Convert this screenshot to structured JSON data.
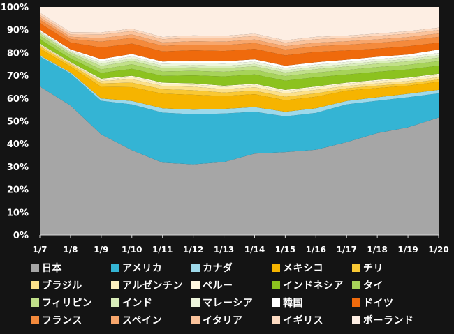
{
  "chart_data": {
    "type": "area",
    "stacked": true,
    "percent": true,
    "title": "",
    "xlabel": "",
    "ylabel": "",
    "categories": [
      "1/7",
      "1/8",
      "1/9",
      "1/10",
      "1/11",
      "1/12",
      "1/13",
      "1/14",
      "1/15",
      "1/16",
      "1/17",
      "1/18",
      "1/19",
      "1/20"
    ],
    "ylim": [
      0,
      100
    ],
    "yticks": [
      "0%",
      "10%",
      "20%",
      "30%",
      "40%",
      "50%",
      "60%",
      "70%",
      "80%",
      "90%",
      "100%"
    ],
    "grid": false,
    "legend_position": "bottom",
    "series": [
      {
        "name": "日本",
        "color": "#a6a6a6",
        "values": [
          64.5,
          56.5,
          43.5,
          37,
          32.5,
          31,
          31.5,
          35,
          36,
          37,
          40.5,
          44,
          46.5,
          51
        ]
      },
      {
        "name": "アメリカ",
        "color": "#34b4d4",
        "values": [
          13,
          14,
          14.5,
          20,
          22.5,
          22,
          21,
          18,
          15.5,
          16,
          16.5,
          14,
          13,
          10.5
        ]
      },
      {
        "name": "カナダ",
        "color": "#9ed9ea",
        "values": [
          0.5,
          0.5,
          1,
          1.5,
          2,
          2,
          2,
          2,
          2,
          2,
          1.5,
          1.5,
          1.5,
          1.5
        ]
      },
      {
        "name": "メキシコ",
        "color": "#f6b400",
        "values": [
          3,
          2.5,
          5,
          6,
          6.5,
          6.5,
          5.5,
          5.5,
          5,
          5,
          4.5,
          4,
          3.5,
          3.5
        ]
      },
      {
        "name": "チリ",
        "color": "#f9c834",
        "values": [
          1,
          1,
          1.5,
          2,
          2,
          2,
          1.5,
          1.5,
          1.5,
          1.5,
          1,
          1,
          1,
          1
        ]
      },
      {
        "name": "ブラジル",
        "color": "#fbe08a",
        "values": [
          0.5,
          0.5,
          1,
          1.5,
          1.5,
          1.5,
          1.5,
          1.5,
          1.5,
          1.5,
          1,
          1,
          1,
          1
        ]
      },
      {
        "name": "アルゼンチン",
        "color": "#fdf0c0",
        "values": [
          0.2,
          0.2,
          0.5,
          1,
          1,
          1,
          1,
          1,
          1,
          1,
          1,
          1,
          1,
          1
        ]
      },
      {
        "name": "ペルー",
        "color": "#fff8e0",
        "values": [
          0.3,
          0.3,
          0.5,
          0.5,
          0.5,
          0.5,
          0.5,
          0.5,
          0.5,
          0.5,
          0.5,
          0.5,
          0.5,
          0.5
        ]
      },
      {
        "name": "インドネシア",
        "color": "#8cc21f",
        "values": [
          2,
          1.5,
          2.5,
          3,
          3,
          3.5,
          4,
          4,
          4,
          4,
          3.5,
          3.5,
          3.5,
          3.5
        ]
      },
      {
        "name": "タイ",
        "color": "#a7d35a",
        "values": [
          1.5,
          1.5,
          1.5,
          2,
          2,
          2,
          2,
          2,
          2,
          2,
          2,
          2,
          2,
          2
        ]
      },
      {
        "name": "フィリピン",
        "color": "#c1e08a",
        "values": [
          1,
          1,
          1.5,
          1.5,
          1.5,
          1.5,
          1.5,
          1.5,
          1.5,
          1.5,
          1.5,
          1.5,
          1.5,
          1.5
        ]
      },
      {
        "name": "インド",
        "color": "#d9edba",
        "values": [
          0.5,
          0.5,
          1,
          1,
          1,
          1,
          1,
          1,
          1,
          1,
          1,
          1,
          1,
          1
        ]
      },
      {
        "name": "マレーシア",
        "color": "#eef6dd",
        "values": [
          0.5,
          0.5,
          1,
          1,
          1,
          1,
          1,
          1,
          1,
          1,
          1,
          1,
          1,
          1
        ]
      },
      {
        "name": "韓国",
        "color": "#ffffff",
        "values": [
          0.5,
          0.5,
          1,
          1,
          1,
          1,
          1,
          1,
          1,
          1,
          1,
          1,
          1,
          1.5
        ]
      },
      {
        "name": "ドイツ",
        "color": "#ef6a0c",
        "values": [
          3,
          3,
          5,
          4.5,
          4.5,
          4.5,
          4.5,
          4.5,
          4.5,
          4.5,
          4,
          3.5,
          3.5,
          3
        ]
      },
      {
        "name": "フランス",
        "color": "#f48a3c",
        "values": [
          1.5,
          1.5,
          2.5,
          2.5,
          2.5,
          2.5,
          2.5,
          2.5,
          2.5,
          2.5,
          2.5,
          2.5,
          2.5,
          2.5
        ]
      },
      {
        "name": "スペイン",
        "color": "#f7a66c",
        "values": [
          1,
          1,
          1.5,
          1.5,
          1.5,
          1.5,
          1.5,
          1.5,
          1.5,
          1.5,
          1.5,
          1.5,
          1.5,
          1.5
        ]
      },
      {
        "name": "イタリア",
        "color": "#fac39c",
        "values": [
          1,
          1,
          1.5,
          1.5,
          1.5,
          1.5,
          1.5,
          1.5,
          1.5,
          1.5,
          1.5,
          1.5,
          1.5,
          1.5
        ]
      },
      {
        "name": "イギリス",
        "color": "#fcdac2",
        "values": [
          1,
          1,
          1,
          1,
          1,
          1,
          1,
          1,
          1,
          1,
          1,
          1,
          1,
          1
        ]
      },
      {
        "name": "ポーランド",
        "color": "#fdeee3",
        "values": [
          2.5,
          11.0,
          11.0,
          9.5,
          13.5,
          12.5,
          12.5,
          11.5,
          14.5,
          13.0,
          12.5,
          11.5,
          10.5,
          9.0
        ]
      }
    ]
  }
}
